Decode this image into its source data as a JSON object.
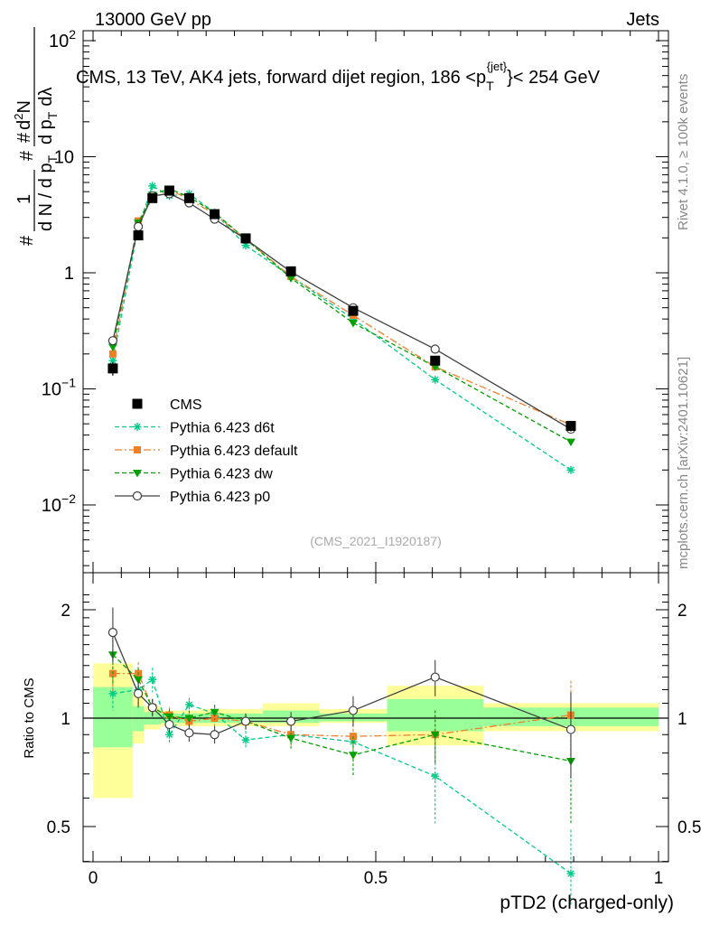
{
  "header": {
    "left": "13000 GeV pp",
    "right": "Jets"
  },
  "main_title": {
    "text1": "CMS, 13 TeV, AK4 jets, forward dijet region, 186 <p",
    "sub": "T",
    "sup": "{jet}",
    "text2": "}< 254 GeV"
  },
  "ylabel_top": {
    "frac1_num": "1",
    "frac1_den": "d N / d p",
    "frac1_den_sub": "T",
    "frac2_num_base": "d",
    "frac2_num_sup": "2",
    "frac2_num_rest": "N",
    "frac2_den1": "d p",
    "frac2_den1_sub": "T",
    "frac2_den2": "dλ",
    "hash": "#"
  },
  "side_text": {
    "rivet": "Rivet 4.1.0, ≥ 100k events",
    "mcplots": "mcplots.cern.ch [arXiv:2401.10621]"
  },
  "watermark": "(CMS_2021_I1920187)",
  "ratio_ylabel": "Ratio to CMS",
  "x_axis": {
    "title": "pTD2 (charged-only)",
    "ticks": [
      "0",
      "0.5",
      "1"
    ]
  },
  "top_y_ticks": [
    {
      "base": "10",
      "exp": "2",
      "value": 100
    },
    {
      "base": "10",
      "exp": "",
      "value": 10
    },
    {
      "base": "1",
      "exp": "",
      "value": 1
    },
    {
      "base": "10",
      "exp": "−1",
      "value": 0.1
    },
    {
      "base": "10",
      "exp": "−2",
      "value": 0.01
    }
  ],
  "ratio_y_ticks": [
    "0.5",
    "1",
    "2"
  ],
  "legend": [
    {
      "key": "cms",
      "label": "CMS"
    },
    {
      "key": "d6t",
      "label": "Pythia 6.423 d6t"
    },
    {
      "key": "def",
      "label": "Pythia 6.423 default"
    },
    {
      "key": "dw",
      "label": "Pythia 6.423 dw"
    },
    {
      "key": "p0",
      "label": "Pythia 6.423 p0"
    }
  ],
  "chart_data": {
    "type": "line",
    "title": "CMS, 13 TeV, AK4 jets, forward dijet region, 186 < pT jet < 254 GeV",
    "xlabel": "pTD2 (charged-only)",
    "ylabel": "1/(dN/dpT) d2N/dpT dlambda",
    "xlim": [
      0,
      1
    ],
    "ylim": [
      0.002,
      150
    ],
    "yscale": "log",
    "ratio_ylim": [
      0.4,
      2.3
    ],
    "ratio_yscale": "log",
    "colors": {
      "cms": "#000000",
      "d6t": "#00cc88",
      "def": "#f07f28",
      "dw": "#00a000",
      "p0": "#404040",
      "band_inner": "#99ff99",
      "band_outer": "#ffff99"
    },
    "bins": [
      [
        0,
        0.07
      ],
      [
        0.07,
        0.09
      ],
      [
        0.09,
        0.12
      ],
      [
        0.12,
        0.15
      ],
      [
        0.15,
        0.19
      ],
      [
        0.19,
        0.24
      ],
      [
        0.24,
        0.3
      ],
      [
        0.3,
        0.4
      ],
      [
        0.4,
        0.52
      ],
      [
        0.52,
        0.69
      ],
      [
        0.69,
        1.0
      ]
    ],
    "x": [
      0.035,
      0.08,
      0.105,
      0.135,
      0.17,
      0.215,
      0.27,
      0.35,
      0.46,
      0.605,
      0.845
    ],
    "band_inner": [
      [
        0.83,
        1.22
      ],
      [
        0.92,
        1.08
      ],
      [
        0.96,
        1.04
      ],
      [
        0.97,
        1.03
      ],
      [
        0.97,
        1.03
      ],
      [
        0.97,
        1.03
      ],
      [
        0.97,
        1.03
      ],
      [
        0.97,
        1.05
      ],
      [
        0.98,
        1.03
      ],
      [
        0.92,
        1.13
      ],
      [
        0.95,
        1.07
      ]
    ],
    "band_outer": [
      [
        0.6,
        1.42
      ],
      [
        0.85,
        1.18
      ],
      [
        0.93,
        1.08
      ],
      [
        0.95,
        1.05
      ],
      [
        0.95,
        1.05
      ],
      [
        0.95,
        1.06
      ],
      [
        0.95,
        1.06
      ],
      [
        0.95,
        1.1
      ],
      [
        0.97,
        1.06
      ],
      [
        0.84,
        1.23
      ],
      [
        0.92,
        1.1
      ]
    ],
    "series": [
      {
        "key": "cms",
        "name": "CMS",
        "values": [
          0.15,
          2.1,
          4.4,
          5.1,
          4.4,
          3.2,
          1.98,
          1.03,
          0.47,
          0.175,
          0.048
        ],
        "errors": [
          0.02,
          0.15,
          0.2,
          0.2,
          0.2,
          0.15,
          0.1,
          0.05,
          0.03,
          0.015,
          0.005
        ]
      },
      {
        "key": "d6t",
        "name": "Pythia 6.423 d6t",
        "values": [
          0.175,
          2.5,
          5.6,
          4.6,
          4.8,
          3.3,
          1.72,
          0.93,
          0.4,
          0.12,
          0.02
        ],
        "ratio": [
          1.17,
          1.2,
          1.28,
          0.9,
          1.09,
          1.03,
          0.87,
          0.9,
          0.86,
          0.69,
          0.37
        ],
        "ratio_err": [
          0.12,
          0.12,
          0.1,
          0.05,
          0.05,
          0.05,
          0.05,
          0.06,
          0.1,
          0.18,
          0.12
        ]
      },
      {
        "key": "def",
        "name": "Pythia 6.423 default",
        "values": [
          0.2,
          2.8,
          4.3,
          5.2,
          4.3,
          3.2,
          1.95,
          0.93,
          0.43,
          0.155,
          0.049
        ],
        "ratio": [
          1.33,
          1.33,
          1.07,
          1.02,
          0.98,
          1.0,
          0.98,
          0.9,
          0.89,
          0.9,
          1.02
        ],
        "ratio_err": [
          0.15,
          0.1,
          0.06,
          0.05,
          0.05,
          0.05,
          0.05,
          0.06,
          0.1,
          0.15,
          0.25
        ]
      },
      {
        "key": "dw",
        "name": "Pythia 6.423 dw",
        "values": [
          0.23,
          2.7,
          4.7,
          5.3,
          4.5,
          3.3,
          1.95,
          0.9,
          0.37,
          0.155,
          0.035
        ],
        "ratio": [
          1.5,
          1.28,
          1.07,
          1.01,
          1.0,
          1.04,
          0.98,
          0.88,
          0.79,
          0.9,
          0.76
        ],
        "ratio_err": [
          0.25,
          0.1,
          0.06,
          0.05,
          0.05,
          0.05,
          0.05,
          0.06,
          0.1,
          0.15,
          0.25
        ]
      },
      {
        "key": "p0",
        "name": "Pythia 6.423 p0",
        "values": [
          0.26,
          2.5,
          4.6,
          4.8,
          4.0,
          2.9,
          1.95,
          1.02,
          0.5,
          0.22,
          0.045
        ],
        "ratio": [
          1.73,
          1.17,
          1.07,
          0.96,
          0.91,
          0.9,
          0.98,
          0.98,
          1.05,
          1.3,
          0.93
        ],
        "ratio_err": [
          0.3,
          0.1,
          0.06,
          0.05,
          0.05,
          0.05,
          0.05,
          0.06,
          0.1,
          0.15,
          0.25
        ]
      }
    ]
  }
}
